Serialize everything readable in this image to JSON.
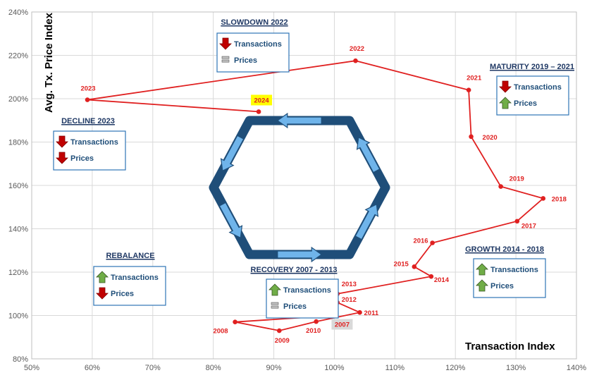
{
  "chart_data": {
    "type": "line",
    "xlabel": "Transaction Index",
    "ylabel": "Avg. Tx. Price Index",
    "xlim": [
      50,
      140
    ],
    "ylim": [
      80,
      240
    ],
    "x_ticks": [
      "50%",
      "60%",
      "70%",
      "80%",
      "90%",
      "100%",
      "110%",
      "120%",
      "130%",
      "140%"
    ],
    "y_ticks": [
      "80%",
      "100%",
      "120%",
      "140%",
      "160%",
      "180%",
      "200%",
      "220%",
      "240%"
    ],
    "grid": true,
    "series_color": "#e02020",
    "points": [
      {
        "label": "2007",
        "x": 100,
        "y": 100
      },
      {
        "label": "2008",
        "x": 83.6,
        "y": 97
      },
      {
        "label": "2009",
        "x": 90.9,
        "y": 93
      },
      {
        "label": "2010",
        "x": 97,
        "y": 97.2
      },
      {
        "label": "2011",
        "x": 104.2,
        "y": 101.4
      },
      {
        "label": "2012",
        "x": 100.5,
        "y": 106
      },
      {
        "label": "2013",
        "x": 100.5,
        "y": 110
      },
      {
        "label": "2014",
        "x": 116,
        "y": 118
      },
      {
        "label": "2015",
        "x": 113.2,
        "y": 122.5
      },
      {
        "label": "2016",
        "x": 116.2,
        "y": 133.5
      },
      {
        "label": "2017",
        "x": 130.2,
        "y": 143.5
      },
      {
        "label": "2018",
        "x": 134.5,
        "y": 154
      },
      {
        "label": "2019",
        "x": 127.5,
        "y": 159.5
      },
      {
        "label": "2020",
        "x": 122.6,
        "y": 182.5
      },
      {
        "label": "2021",
        "x": 122.2,
        "y": 204
      },
      {
        "label": "2022",
        "x": 103.5,
        "y": 217.5
      },
      {
        "label": "2023",
        "x": 59.2,
        "y": 199.5
      },
      {
        "label": "2024",
        "x": 87.5,
        "y": 194
      }
    ],
    "highlights": {
      "2024": "#ffff00",
      "2007": "#d9d9d9"
    }
  },
  "phases": [
    {
      "title": "SLOWDOWN 2022",
      "transactions": "down",
      "prices": "flat"
    },
    {
      "title": "MATURITY 2019 – 2021",
      "transactions": "down",
      "prices": "up"
    },
    {
      "title": "DECLINE 2023",
      "transactions": "down",
      "prices": "down"
    },
    {
      "title": "REBALANCE",
      "transactions": "up",
      "prices": "down"
    },
    {
      "title": "RECOVERY 2007 - 2013",
      "transactions": "up",
      "prices": "flat"
    },
    {
      "title": "GROWTH 2014 - 2018",
      "transactions": "up",
      "prices": "up"
    }
  ],
  "box_labels": {
    "transactions": "Transactions",
    "prices": "Prices"
  },
  "colors": {
    "up": "#70ad47",
    "down": "#c00000",
    "flat": "#7f7f7f",
    "hexagon": "#1f4e79",
    "arrow": "#6fb4ea"
  }
}
